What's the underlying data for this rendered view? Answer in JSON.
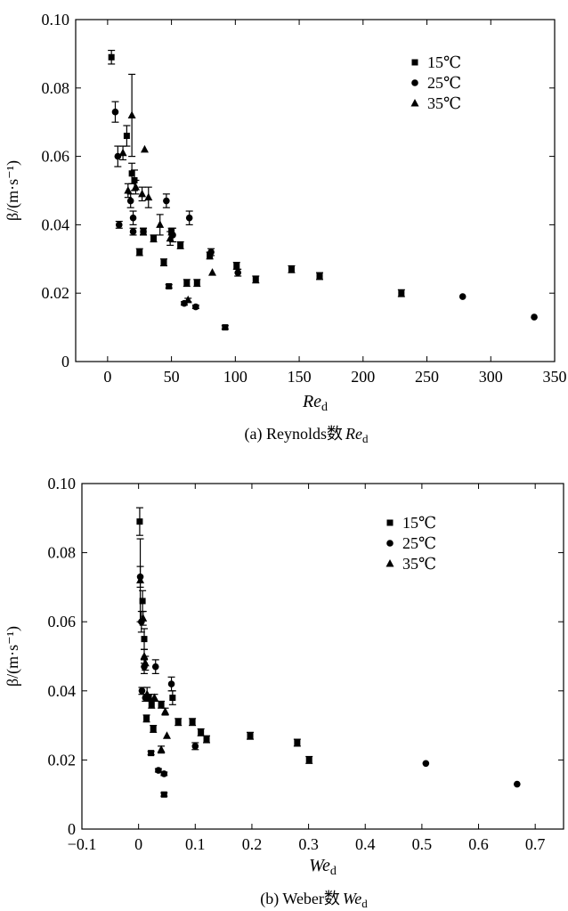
{
  "chart_data": [
    {
      "type": "scatter",
      "caption_prefix": "(a) Reynolds数",
      "caption_var": "Re",
      "caption_sub": "d",
      "xlabel_var": "Re",
      "xlabel_sub": "d",
      "ylabel": "β/(m·s⁻¹)",
      "xlim": [
        -25,
        350
      ],
      "ylim": [
        0,
        0.1
      ],
      "xticks": [
        "0",
        "50",
        "100",
        "150",
        "200",
        "250",
        "300",
        "350"
      ],
      "xtick_values": [
        0,
        50,
        100,
        150,
        200,
        250,
        300,
        350
      ],
      "yticks": [
        "0",
        "0.02",
        "0.04",
        "0.06",
        "0.08",
        "0.10"
      ],
      "ytick_values": [
        0,
        0.02,
        0.04,
        0.06,
        0.08,
        0.1
      ],
      "legend_position": "top-right",
      "series": [
        {
          "name": "15℃",
          "marker": "square",
          "points": [
            [
              3,
              0.089,
              0.002
            ],
            [
              15,
              0.066,
              0.003
            ],
            [
              19,
              0.055,
              0.003
            ],
            [
              21,
              0.053,
              0.003
            ],
            [
              25,
              0.032,
              0.001
            ],
            [
              28,
              0.038,
              0.001
            ],
            [
              36,
              0.036,
              0.001
            ],
            [
              44,
              0.029,
              0.001
            ],
            [
              48,
              0.022,
              0.0005
            ],
            [
              50,
              0.038,
              0.001
            ],
            [
              57,
              0.034,
              0.001
            ],
            [
              62,
              0.023,
              0.001
            ],
            [
              70,
              0.023,
              0.001
            ],
            [
              80,
              0.031,
              0.001
            ],
            [
              92,
              0.01,
              0.0005
            ],
            [
              101,
              0.028,
              0.001
            ],
            [
              116,
              0.024,
              0.001
            ],
            [
              144,
              0.027,
              0.001
            ],
            [
              166,
              0.025,
              0.001
            ],
            [
              230,
              0.02,
              0.001
            ]
          ]
        },
        {
          "name": "25℃",
          "marker": "circle",
          "points": [
            [
              6,
              0.073,
              0.003
            ],
            [
              8,
              0.06,
              0.003
            ],
            [
              9,
              0.04,
              0.001
            ],
            [
              18,
              0.047,
              0.002
            ],
            [
              20,
              0.038,
              0.001
            ],
            [
              20,
              0.042,
              0.002
            ],
            [
              28,
              0.038,
              0.001
            ],
            [
              46,
              0.047,
              0.002
            ],
            [
              51,
              0.037,
              0.002
            ],
            [
              60,
              0.017,
              0.0005
            ],
            [
              64,
              0.042,
              0.002
            ],
            [
              69,
              0.016,
              0.0005
            ],
            [
              81,
              0.032,
              0.001
            ],
            [
              102,
              0.026,
              0.001
            ],
            [
              278,
              0.019,
              0
            ],
            [
              334,
              0.013,
              0
            ]
          ]
        },
        {
          "name": "35℃",
          "marker": "triangle",
          "points": [
            [
              12,
              0.061,
              0.002
            ],
            [
              16,
              0.05,
              0.002
            ],
            [
              19,
              0.072,
              0.012
            ],
            [
              22,
              0.051,
              0.002
            ],
            [
              27,
              0.049,
              0.002
            ],
            [
              29,
              0.062,
              0
            ],
            [
              32,
              0.048,
              0.003
            ],
            [
              41,
              0.04,
              0.003
            ],
            [
              49,
              0.036,
              0.002
            ],
            [
              63,
              0.018,
              0.0005
            ],
            [
              82,
              0.026,
              0
            ]
          ]
        }
      ]
    },
    {
      "type": "scatter",
      "caption_prefix": "(b) Weber数",
      "caption_var": "We",
      "caption_sub": "d",
      "xlabel_var": "We",
      "xlabel_sub": "d",
      "ylabel": "β/(m·s⁻¹)",
      "xlim": [
        -0.1,
        0.75
      ],
      "ylim": [
        0,
        0.1
      ],
      "xticks": [
        "−0.1",
        "0",
        "0.1",
        "0.2",
        "0.3",
        "0.4",
        "0.5",
        "0.6",
        "0.7"
      ],
      "xtick_values": [
        -0.1,
        0,
        0.1,
        0.2,
        0.3,
        0.4,
        0.5,
        0.6,
        0.7
      ],
      "yticks": [
        "0",
        "0.02",
        "0.04",
        "0.06",
        "0.08",
        "0.10"
      ],
      "ytick_values": [
        0,
        0.02,
        0.04,
        0.06,
        0.08,
        0.1
      ],
      "legend_position": "top-right",
      "series": [
        {
          "name": "15℃",
          "marker": "square",
          "points": [
            [
              0.002,
              0.089,
              0.004
            ],
            [
              0.007,
              0.066,
              0.003
            ],
            [
              0.01,
              0.055,
              0.003
            ],
            [
              0.014,
              0.032,
              0.001
            ],
            [
              0.018,
              0.038,
              0.001
            ],
            [
              0.023,
              0.036,
              0.001
            ],
            [
              0.026,
              0.029,
              0.001
            ],
            [
              0.022,
              0.022,
              0.0005
            ],
            [
              0.04,
              0.036,
              0.001
            ],
            [
              0.06,
              0.038,
              0.002
            ],
            [
              0.07,
              0.031,
              0.001
            ],
            [
              0.095,
              0.031,
              0.001
            ],
            [
              0.045,
              0.01,
              0.0005
            ],
            [
              0.11,
              0.028,
              0.001
            ],
            [
              0.12,
              0.026,
              0.001
            ],
            [
              0.197,
              0.027,
              0.001
            ],
            [
              0.28,
              0.025,
              0.001
            ],
            [
              0.301,
              0.02,
              0.001
            ]
          ]
        },
        {
          "name": "25℃",
          "marker": "circle",
          "points": [
            [
              0.003,
              0.073,
              0.003
            ],
            [
              0.005,
              0.06,
              0.003
            ],
            [
              0.006,
              0.04,
              0.001
            ],
            [
              0.01,
              0.047,
              0.002
            ],
            [
              0.012,
              0.038,
              0.001
            ],
            [
              0.03,
              0.047,
              0.002
            ],
            [
              0.035,
              0.017,
              0.0005
            ],
            [
              0.045,
              0.016,
              0.0005
            ],
            [
              0.058,
              0.042,
              0.002
            ],
            [
              0.1,
              0.024,
              0.001
            ],
            [
              0.507,
              0.019,
              0
            ],
            [
              0.668,
              0.013,
              0
            ]
          ]
        },
        {
          "name": "35℃",
          "marker": "triangle",
          "points": [
            [
              0.003,
              0.072,
              0.012
            ],
            [
              0.008,
              0.061,
              0.002
            ],
            [
              0.01,
              0.05,
              0.002
            ],
            [
              0.012,
              0.048,
              0.002
            ],
            [
              0.015,
              0.039,
              0.002
            ],
            [
              0.028,
              0.038,
              0.001
            ],
            [
              0.04,
              0.023,
              0.001
            ],
            [
              0.05,
              0.027,
              0
            ],
            [
              0.047,
              0.034,
              0.001
            ]
          ]
        }
      ]
    }
  ]
}
